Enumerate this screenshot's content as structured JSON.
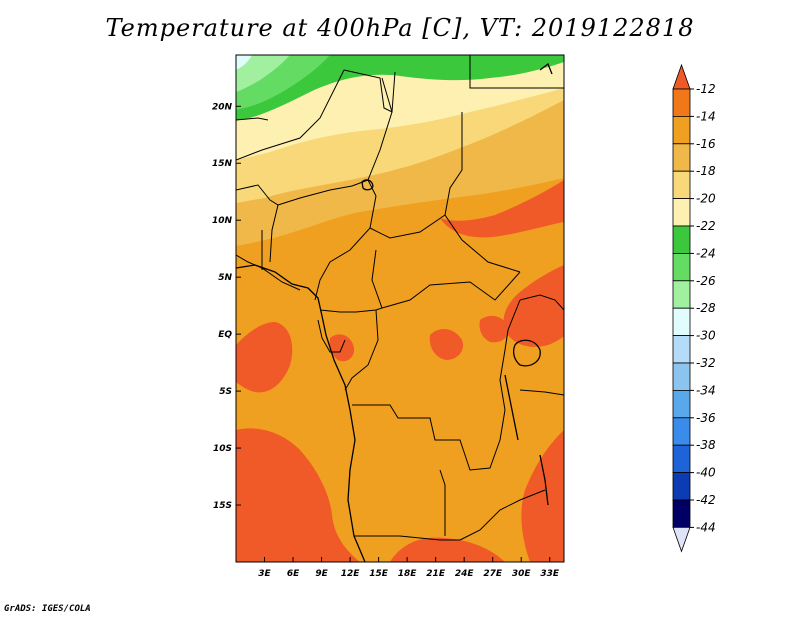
{
  "title": "Temperature at 400hPa [C], VT: 2019122818",
  "credit": "GrADS: IGES/COLA",
  "map": {
    "lon_range": [
      0,
      34.5
    ],
    "lat_range": [
      -20,
      24.5
    ],
    "lon_ticks": [
      {
        "value": 3,
        "label": "3E"
      },
      {
        "value": 6,
        "label": "6E"
      },
      {
        "value": 9,
        "label": "9E"
      },
      {
        "value": 12,
        "label": "12E"
      },
      {
        "value": 15,
        "label": "15E"
      },
      {
        "value": 18,
        "label": "18E"
      },
      {
        "value": 21,
        "label": "21E"
      },
      {
        "value": 24,
        "label": "24E"
      },
      {
        "value": 27,
        "label": "27E"
      },
      {
        "value": 30,
        "label": "30E"
      },
      {
        "value": 33,
        "label": "33E"
      }
    ],
    "lat_ticks": [
      {
        "value": 20,
        "label": "20N"
      },
      {
        "value": 15,
        "label": "15N"
      },
      {
        "value": 10,
        "label": "10N"
      },
      {
        "value": 5,
        "label": "5N"
      },
      {
        "value": 0,
        "label": "EQ"
      },
      {
        "value": -5,
        "label": "5S"
      },
      {
        "value": -10,
        "label": "10S"
      },
      {
        "value": -15,
        "label": "15S"
      }
    ]
  },
  "colorbar": {
    "levels": [
      "-12",
      "-14",
      "-16",
      "-18",
      "-20",
      "-22",
      "-24",
      "-26",
      "-28",
      "-30",
      "-32",
      "-34",
      "-36",
      "-38",
      "-40",
      "-42",
      "-44"
    ],
    "colors": [
      "#f05a28",
      "#f07818",
      "#f0a020",
      "#f0b848",
      "#f8d878",
      "#fdf0b0",
      "#3cc83c",
      "#64dc64",
      "#a0f0a0",
      "#e0fcfc",
      "#b4dcf8",
      "#8cc4f0",
      "#5aa8ec",
      "#3a8cea",
      "#1e64d8",
      "#0c3cb4",
      "#000064",
      "#e0e4f8"
    ]
  }
}
